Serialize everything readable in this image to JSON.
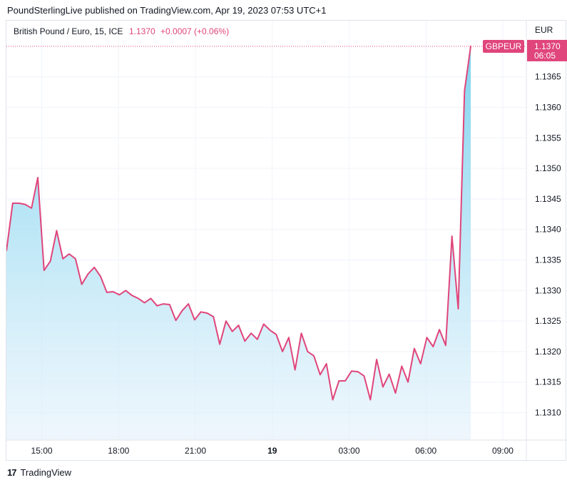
{
  "header": {
    "published": "PoundSterlingLive published on TradingView.com, Apr 19, 2023 07:53 UTC+1"
  },
  "legend": {
    "symbol": "British Pound / Euro, 15, ICE",
    "price": "1.1370",
    "change": "+0.0007 (+0.06%)"
  },
  "footer": {
    "logo_mark": "17",
    "logo_text": "TradingView"
  },
  "colors": {
    "line": "#e0457b",
    "fill_top": "#7fd4ee",
    "fill_bottom": "#e3f1fb",
    "grid": "#f0f3fa",
    "label_bg": "#e0457b"
  },
  "chart_data": {
    "type": "area",
    "currency_label": "EUR",
    "price_tag": {
      "symbol": "GBPEUR",
      "value": "1.1370",
      "countdown": "06:05"
    },
    "ylim": [
      1.13055,
      1.13742
    ],
    "xlim_hours": [
      13.62,
      9.92
    ],
    "y_ticks": [
      "1.1365",
      "1.1360",
      "1.1355",
      "1.1350",
      "1.1345",
      "1.1340",
      "1.1335",
      "1.1330",
      "1.1325",
      "1.1320",
      "1.1315",
      "1.1310"
    ],
    "x_ticks": [
      {
        "label": "15:00",
        "bold": false
      },
      {
        "label": "18:00",
        "bold": false
      },
      {
        "label": "21:00",
        "bold": false
      },
      {
        "label": "19",
        "bold": true
      },
      {
        "label": "03:00",
        "bold": false
      },
      {
        "label": "06:00",
        "bold": false
      },
      {
        "label": "09:00",
        "bold": false
      }
    ],
    "series": [
      {
        "values": [
          1.13365,
          1.13443,
          1.13443,
          1.13441,
          1.13435,
          1.13485,
          1.13333,
          1.13348,
          1.13398,
          1.13352,
          1.1336,
          1.13352,
          1.1331,
          1.13327,
          1.13338,
          1.13323,
          1.13297,
          1.13298,
          1.13293,
          1.133,
          1.13292,
          1.13287,
          1.1328,
          1.13287,
          1.13275,
          1.13278,
          1.13277,
          1.13251,
          1.13267,
          1.13278,
          1.13252,
          1.13265,
          1.13263,
          1.13257,
          1.13212,
          1.1325,
          1.13233,
          1.13243,
          1.13217,
          1.1323,
          1.1322,
          1.13245,
          1.13235,
          1.13228,
          1.132,
          1.13223,
          1.1317,
          1.1323,
          1.132,
          1.13193,
          1.13162,
          1.1318,
          1.13121,
          1.13152,
          1.13152,
          1.13168,
          1.13167,
          1.1316,
          1.13121,
          1.13187,
          1.13142,
          1.13163,
          1.13132,
          1.13176,
          1.1315,
          1.13205,
          1.1318,
          1.13223,
          1.13208,
          1.13236,
          1.1321,
          1.13389,
          1.1327,
          1.13627,
          1.13701
        ]
      }
    ]
  }
}
